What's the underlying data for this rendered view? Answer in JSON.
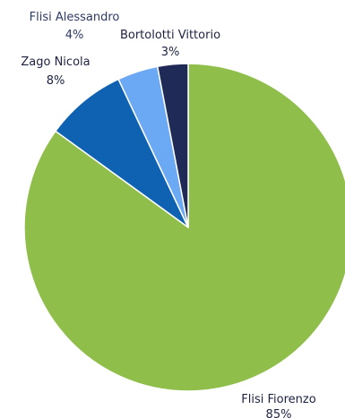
{
  "chart_data": {
    "type": "pie",
    "title": "",
    "start": "12 o'clock",
    "direction": "clockwise",
    "slices": [
      {
        "name": "Flisi Fiorenzo",
        "percent_label": "85%",
        "value": 85,
        "color": "#8fbe4a",
        "label_color": "#1c2240"
      },
      {
        "name": "Zago Nicola",
        "percent_label": "8%",
        "value": 8,
        "color": "#0f62b2",
        "label_color": "#1c2240"
      },
      {
        "name": "Flisi Alessandro",
        "percent_label": "4%",
        "value": 4,
        "color": "#6ca9f5",
        "label_color": "#2e3a66"
      },
      {
        "name": "Bortolotti Vittorio",
        "percent_label": "3%",
        "value": 3,
        "color": "#1f2a57",
        "label_color": "#1c2240"
      }
    ]
  }
}
